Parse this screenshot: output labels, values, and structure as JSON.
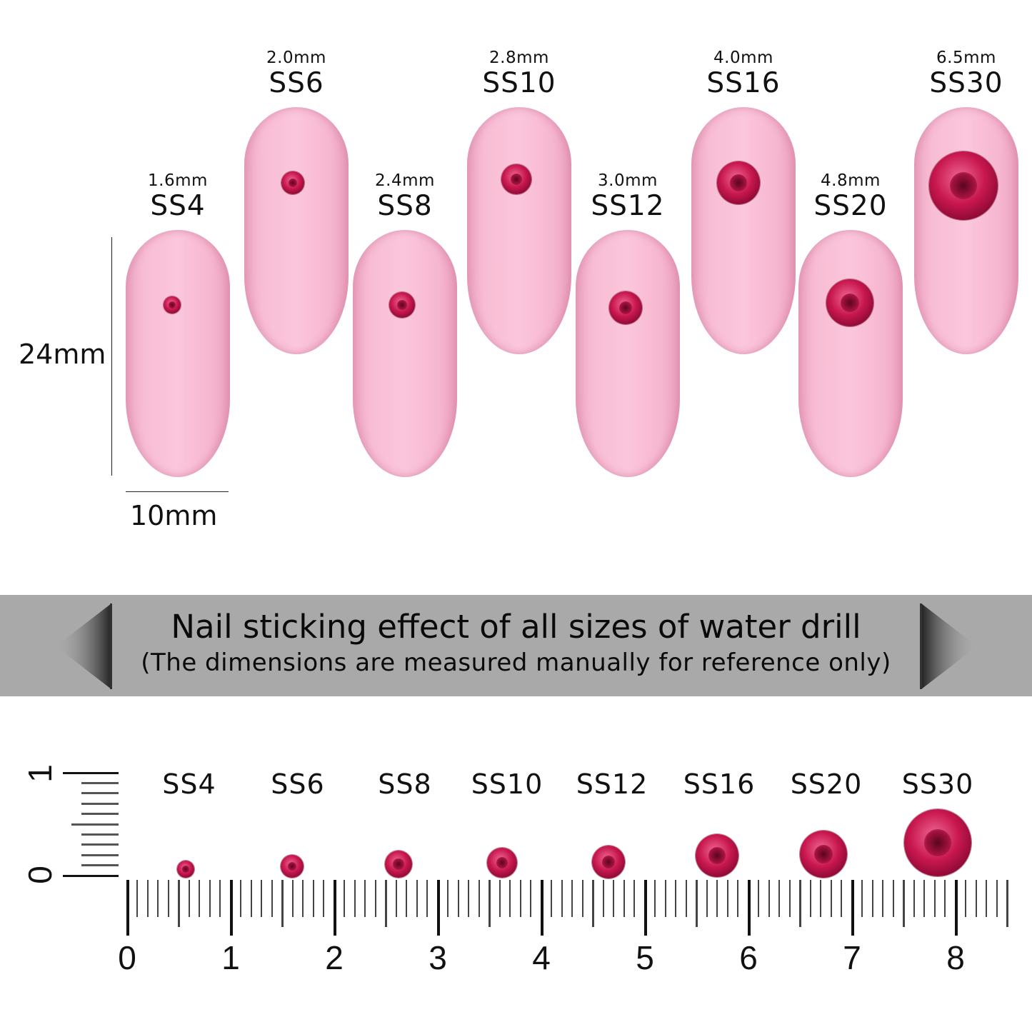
{
  "nails": [
    {
      "size": "SS4",
      "mm": "1.6mm"
    },
    {
      "size": "SS6",
      "mm": "2.0mm"
    },
    {
      "size": "SS8",
      "mm": "2.4mm"
    },
    {
      "size": "SS10",
      "mm": "2.8mm"
    },
    {
      "size": "SS12",
      "mm": "3.0mm"
    },
    {
      "size": "SS16",
      "mm": "4.0mm"
    },
    {
      "size": "SS20",
      "mm": "4.8mm"
    },
    {
      "size": "SS30",
      "mm": "6.5mm"
    }
  ],
  "dimensions": {
    "height": "24mm",
    "width": "10mm"
  },
  "banner": {
    "title": "Nail sticking effect of all sizes of water drill",
    "subtitle": "(The dimensions are measured manually for reference only)"
  },
  "ruler": {
    "sizes": [
      "SS4",
      "SS6",
      "SS8",
      "SS10",
      "SS12",
      "SS16",
      "SS20",
      "SS30"
    ],
    "x_labels": [
      "0",
      "1",
      "2",
      "3",
      "4",
      "5",
      "6",
      "7",
      "8"
    ],
    "y_labels": [
      "0",
      "1"
    ]
  },
  "colors": {
    "nail": "#f8bdd4",
    "gem": "#c8174f",
    "banner": "#a9a9a9"
  }
}
